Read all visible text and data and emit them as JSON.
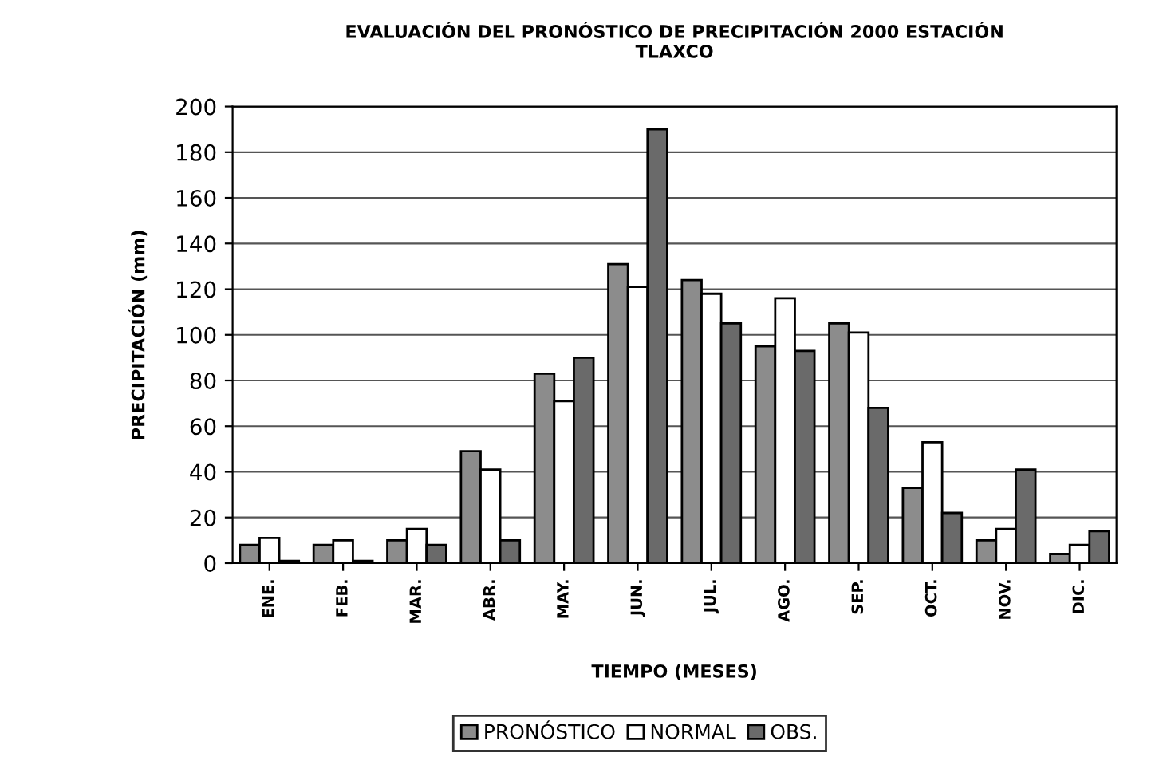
{
  "chart_data": {
    "type": "bar",
    "title": "EVALUACIÓN DEL PRONÓSTICO DE PRECIPITACIÓN 2000 ESTACIÓN\nTLAXCO",
    "xlabel": "TIEMPO (MESES)",
    "ylabel": "PRECIPITACIÓN (mm)",
    "categories": [
      "ENE.",
      "FEB.",
      "MAR.",
      "ABR.",
      "MAY.",
      "JUN.",
      "JUL.",
      "AGO.",
      "SEP.",
      "OCT.",
      "NOV.",
      "DIC."
    ],
    "series": [
      {
        "name": "PRONÓSTICO",
        "color": "#8c8c8c",
        "values": [
          8,
          8,
          10,
          49,
          83,
          131,
          124,
          95,
          105,
          33,
          10,
          4
        ]
      },
      {
        "name": "NORMAL",
        "color": "#ffffff",
        "values": [
          11,
          10,
          15,
          41,
          71,
          121,
          118,
          116,
          101,
          53,
          15,
          8
        ]
      },
      {
        "name": "OBS.",
        "color": "#6a6a6a",
        "values": [
          1,
          1,
          8,
          10,
          90,
          190,
          105,
          93,
          68,
          22,
          41,
          14
        ]
      }
    ],
    "ylim": [
      0,
      200
    ],
    "yticks": [
      0,
      20,
      40,
      60,
      80,
      100,
      120,
      140,
      160,
      180,
      200
    ],
    "grid": "y",
    "legend": "bottom"
  }
}
